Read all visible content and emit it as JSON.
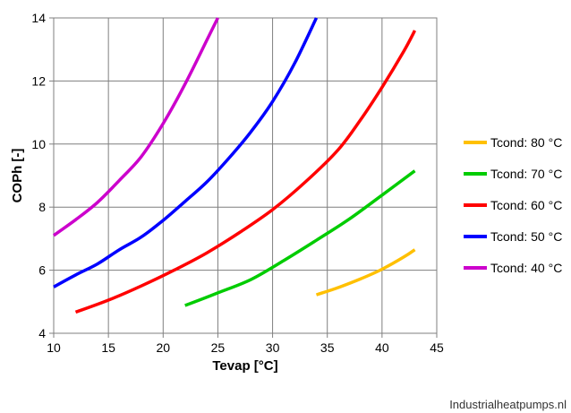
{
  "chart_data": {
    "type": "line",
    "xlabel": "Tevap [°C]",
    "ylabel": "COPh [-]",
    "xlim": [
      10,
      45
    ],
    "ylim": [
      4,
      14
    ],
    "xticks": [
      "10",
      "15",
      "20",
      "25",
      "30",
      "35",
      "40",
      "45"
    ],
    "yticks": [
      "4",
      "6",
      "8",
      "10",
      "12",
      "14"
    ],
    "grid": true,
    "legend_position": "right",
    "series": [
      {
        "name": "Tcond: 80 °C",
        "color": "#FFC000",
        "points": [
          [
            34,
            5.22
          ],
          [
            36,
            5.45
          ],
          [
            38,
            5.72
          ],
          [
            40,
            6.03
          ],
          [
            42,
            6.42
          ],
          [
            43,
            6.65
          ]
        ]
      },
      {
        "name": "Tcond: 70 °C",
        "color": "#00CC00",
        "points": [
          [
            22,
            4.88
          ],
          [
            25,
            5.28
          ],
          [
            28,
            5.7
          ],
          [
            31,
            6.3
          ],
          [
            34,
            6.95
          ],
          [
            37,
            7.62
          ],
          [
            40,
            8.38
          ],
          [
            43,
            9.15
          ]
        ]
      },
      {
        "name": "Tcond: 60 °C",
        "color": "#FF0000",
        "points": [
          [
            12,
            4.67
          ],
          [
            15,
            5.05
          ],
          [
            18,
            5.5
          ],
          [
            21,
            6.0
          ],
          [
            24,
            6.55
          ],
          [
            27,
            7.2
          ],
          [
            30,
            7.92
          ],
          [
            33,
            8.8
          ],
          [
            36,
            9.82
          ],
          [
            38,
            10.75
          ],
          [
            40,
            11.8
          ],
          [
            42,
            12.95
          ],
          [
            43,
            13.6
          ]
        ]
      },
      {
        "name": "Tcond: 50 °C",
        "color": "#0000FF",
        "points": [
          [
            10,
            5.47
          ],
          [
            12,
            5.85
          ],
          [
            14,
            6.2
          ],
          [
            16,
            6.65
          ],
          [
            18,
            7.05
          ],
          [
            20,
            7.58
          ],
          [
            22,
            8.18
          ],
          [
            24,
            8.8
          ],
          [
            26,
            9.55
          ],
          [
            28,
            10.38
          ],
          [
            30,
            11.35
          ],
          [
            32,
            12.55
          ],
          [
            34,
            14.0
          ]
        ]
      },
      {
        "name": "Tcond: 40 °C",
        "color": "#CC00CC",
        "points": [
          [
            10,
            7.1
          ],
          [
            12,
            7.6
          ],
          [
            14,
            8.15
          ],
          [
            16,
            8.85
          ],
          [
            18,
            9.6
          ],
          [
            20,
            10.65
          ],
          [
            22,
            11.9
          ],
          [
            24,
            13.3
          ],
          [
            25,
            14.0
          ]
        ]
      }
    ],
    "legend_order": [
      "Tcond: 80 °C",
      "Tcond: 70 °C",
      "Tcond: 60 °C",
      "Tcond: 50 °C",
      "Tcond: 40 °C"
    ]
  },
  "watermark": "Industrialheatpumps.nl"
}
